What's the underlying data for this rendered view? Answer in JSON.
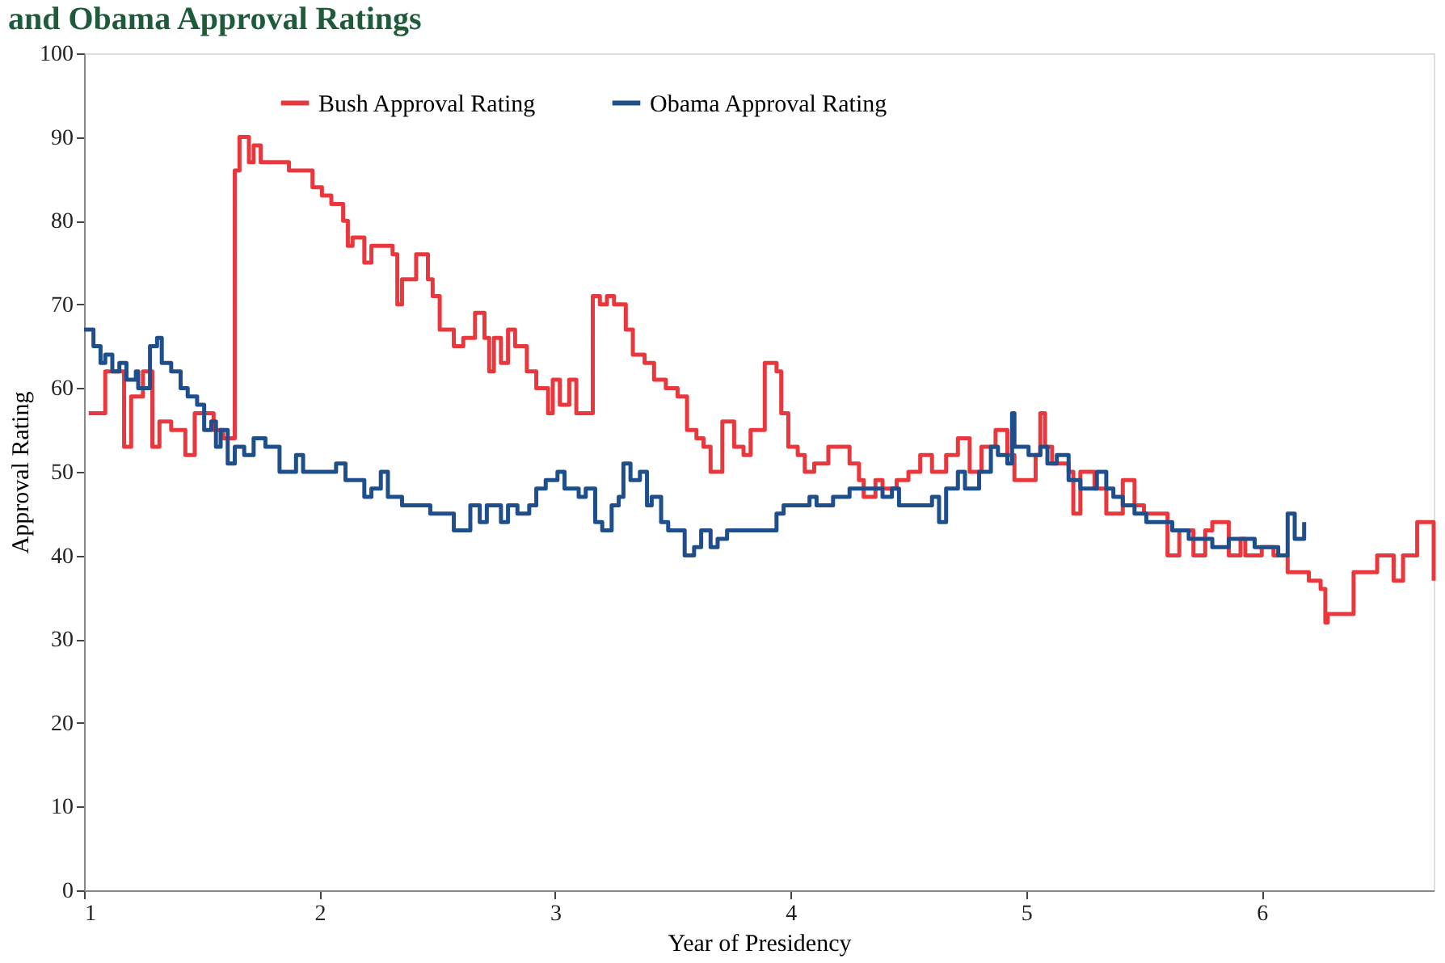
{
  "chart_data": {
    "type": "step",
    "title": "and Obama Approval Ratings",
    "xlabel": "Year of Presidency",
    "ylabel": "Approval Rating",
    "xlim": [
      1,
      6.73
    ],
    "xticks": [
      1,
      2,
      3,
      4,
      5,
      6
    ],
    "ylim": [
      0,
      100
    ],
    "yticks": [
      0,
      10,
      20,
      30,
      40,
      50,
      60,
      70,
      80,
      90,
      100
    ],
    "grid": false,
    "legend": "top",
    "series": [
      {
        "name": "Bush Approval Rating",
        "color": "#e8383d",
        "x": [
          1.02,
          1.09,
          1.17,
          1.2,
          1.25,
          1.29,
          1.32,
          1.37,
          1.43,
          1.47,
          1.55,
          1.59,
          1.64,
          1.66,
          1.7,
          1.72,
          1.75,
          1.87,
          1.97,
          2.01,
          2.05,
          2.1,
          2.12,
          2.14,
          2.19,
          2.22,
          2.31,
          2.33,
          2.35,
          2.41,
          2.46,
          2.48,
          2.51,
          2.54,
          2.57,
          2.61,
          2.66,
          2.7,
          2.72,
          2.74,
          2.77,
          2.8,
          2.83,
          2.88,
          2.92,
          2.97,
          2.99,
          3.02,
          3.06,
          3.09,
          3.13,
          3.16,
          3.19,
          3.22,
          3.25,
          3.3,
          3.33,
          3.38,
          3.42,
          3.47,
          3.52,
          3.56,
          3.6,
          3.63,
          3.66,
          3.69,
          3.71,
          3.74,
          3.76,
          3.8,
          3.83,
          3.89,
          3.94,
          3.96,
          3.99,
          4.03,
          4.06,
          4.1,
          4.16,
          4.25,
          4.29,
          4.31,
          4.36,
          4.39,
          4.45,
          4.5,
          4.55,
          4.6,
          4.66,
          4.71,
          4.76,
          4.81,
          4.87,
          4.92,
          4.95,
          5.04,
          5.06,
          5.08,
          5.11,
          5.18,
          5.2,
          5.23,
          5.29,
          5.34,
          5.41,
          5.46,
          5.5,
          5.57,
          5.6,
          5.65,
          5.71,
          5.76,
          5.79,
          5.86,
          5.91,
          5.93,
          6.0,
          6.05,
          6.11,
          6.2,
          6.25,
          6.27,
          6.28,
          6.34,
          6.39,
          6.42,
          6.49,
          6.56,
          6.6,
          6.66,
          6.73
        ],
        "values": [
          57,
          62,
          53,
          59,
          62,
          53,
          56,
          55,
          52,
          57,
          55,
          54,
          86,
          90,
          87,
          89,
          87,
          86,
          84,
          83,
          82,
          80,
          77,
          78,
          75,
          77,
          76,
          70,
          73,
          76,
          73,
          71,
          67,
          67,
          65,
          66,
          69,
          66,
          62,
          66,
          63,
          67,
          65,
          62,
          60,
          57,
          61,
          58,
          61,
          57,
          57,
          71,
          70,
          71,
          70,
          67,
          64,
          63,
          61,
          60,
          59,
          55,
          54,
          53,
          50,
          50,
          56,
          56,
          53,
          52,
          55,
          63,
          62,
          57,
          53,
          52,
          50,
          51,
          53,
          51,
          49,
          47,
          49,
          48,
          49,
          50,
          52,
          50,
          52,
          54,
          50,
          53,
          55,
          52,
          49,
          52,
          57,
          53,
          51,
          50,
          45,
          50,
          48,
          45,
          49,
          46,
          45,
          45,
          40,
          43,
          40,
          43,
          44,
          40,
          42,
          40,
          41,
          40,
          38,
          37,
          36,
          32,
          33,
          33,
          38,
          38,
          40,
          37,
          40,
          44,
          37
        ]
      },
      {
        "name": "Obama Approval Rating",
        "color": "#1f4e8c",
        "x": [
          1.0,
          1.04,
          1.07,
          1.09,
          1.12,
          1.15,
          1.18,
          1.22,
          1.23,
          1.28,
          1.31,
          1.33,
          1.37,
          1.41,
          1.44,
          1.48,
          1.51,
          1.54,
          1.56,
          1.58,
          1.61,
          1.64,
          1.68,
          1.72,
          1.77,
          1.8,
          1.83,
          1.87,
          1.9,
          1.93,
          1.97,
          2.03,
          2.07,
          2.11,
          2.15,
          2.19,
          2.22,
          2.26,
          2.29,
          2.35,
          2.43,
          2.47,
          2.54,
          2.57,
          2.61,
          2.64,
          2.68,
          2.71,
          2.77,
          2.8,
          2.84,
          2.89,
          2.92,
          2.96,
          3.01,
          3.04,
          3.1,
          3.13,
          3.17,
          3.2,
          3.24,
          3.27,
          3.29,
          3.32,
          3.36,
          3.39,
          3.41,
          3.45,
          3.48,
          3.55,
          3.59,
          3.62,
          3.66,
          3.69,
          3.73,
          3.76,
          3.83,
          3.9,
          3.94,
          3.97,
          4.04,
          4.08,
          4.11,
          4.18,
          4.25,
          4.36,
          4.39,
          4.43,
          4.46,
          4.53,
          4.6,
          4.63,
          4.66,
          4.71,
          4.74,
          4.8,
          4.85,
          4.88,
          4.92,
          4.94,
          4.95,
          5.01,
          5.06,
          5.09,
          5.13,
          5.18,
          5.23,
          5.3,
          5.34,
          5.37,
          5.41,
          5.46,
          5.51,
          5.57,
          5.62,
          5.69,
          5.72,
          5.79,
          5.86,
          5.92,
          5.97,
          6.04,
          6.07,
          6.11,
          6.14,
          6.18
        ],
        "values": [
          67,
          65,
          63,
          64,
          62,
          63,
          61,
          62,
          60,
          65,
          66,
          63,
          62,
          60,
          59,
          58,
          55,
          56,
          53,
          55,
          51,
          53,
          52,
          54,
          53,
          53,
          50,
          50,
          52,
          50,
          50,
          50,
          51,
          49,
          49,
          47,
          48,
          50,
          47,
          46,
          46,
          45,
          45,
          43,
          43,
          46,
          44,
          46,
          44,
          46,
          45,
          46,
          48,
          49,
          50,
          48,
          47,
          48,
          44,
          43,
          46,
          47,
          51,
          49,
          50,
          46,
          47,
          44,
          43,
          40,
          41,
          43,
          41,
          42,
          43,
          43,
          43,
          43,
          45,
          46,
          46,
          47,
          46,
          47,
          48,
          48,
          47,
          48,
          46,
          46,
          47,
          44,
          48,
          50,
          48,
          50,
          53,
          52,
          51,
          57,
          53,
          52,
          53,
          51,
          52,
          49,
          48,
          50,
          48,
          47,
          46,
          45,
          44,
          44,
          43,
          42,
          42,
          41,
          42,
          42,
          41,
          41,
          40,
          45,
          42,
          44
        ]
      }
    ]
  }
}
